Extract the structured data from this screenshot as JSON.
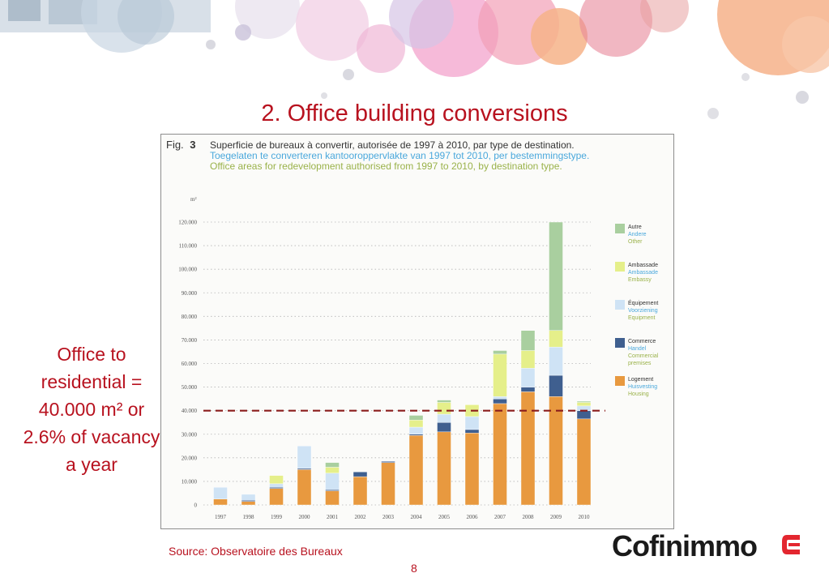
{
  "slide": {
    "title": "2. Office building conversions",
    "note": "Office to residential = 40.000 m² or 2.6% of vacancy a year",
    "source": "Source: Observatoire des Bureaux",
    "page_number": "8",
    "logo_text": "Cofinimmo"
  },
  "chart_data": {
    "type": "bar",
    "stacked": true,
    "fig_label": "Fig.",
    "fig_number": "3",
    "title_fr": "Superficie de bureaux à convertir, autorisée de 1997 à 2010, par type de destination.",
    "title_nl": "Toegelaten te converteren kantooroppervlakte van 1997 tot 2010, per bestemmingstype.",
    "title_en": "Office areas for redevelopment authorised from 1997 to 2010, by destination type.",
    "ylabel": "m²",
    "ylim": [
      0,
      120000
    ],
    "yticks": [
      "0",
      "10.000",
      "20.000",
      "30.000",
      "40.000",
      "50.000",
      "60.000",
      "70.000",
      "80.000",
      "90.000",
      "100.000",
      "110.000",
      "120.000"
    ],
    "grid": true,
    "legend_position": "right",
    "categories": [
      "1997",
      "1998",
      "1999",
      "2000",
      "2001",
      "2002",
      "2003",
      "2004",
      "2005",
      "2006",
      "2007",
      "2008",
      "2009",
      "2010"
    ],
    "series": [
      {
        "name": "Logement",
        "name_nl": "Huisvesting",
        "name_en": "Housing",
        "color": "#e8993f",
        "values": [
          2500,
          1500,
          7000,
          15000,
          6000,
          12000,
          18000,
          29500,
          31000,
          30500,
          43000,
          48000,
          46000,
          36500
        ]
      },
      {
        "name": "Commerce",
        "name_nl": "Handel",
        "name_en": "Commercial premises",
        "color": "#3f5f8f",
        "values": [
          0,
          500,
          500,
          500,
          500,
          2000,
          500,
          500,
          4000,
          1500,
          2000,
          2000,
          9000,
          3500
        ]
      },
      {
        "name": "Équipement",
        "name_nl": "Voorziening",
        "name_en": "Equipment",
        "color": "#cfe3f5",
        "values": [
          5000,
          2500,
          1500,
          9500,
          7000,
          0,
          0,
          3000,
          3500,
          5500,
          1000,
          8000,
          12000,
          2000
        ]
      },
      {
        "name": "Ambassade",
        "name_nl": "Ambassade",
        "name_en": "Embassy",
        "color": "#e5ef8a",
        "values": [
          0,
          0,
          3500,
          0,
          2500,
          0,
          0,
          3000,
          5000,
          5000,
          18000,
          7500,
          7000,
          1500
        ]
      },
      {
        "name": "Autre",
        "name_nl": "Andere",
        "name_en": "Other",
        "color": "#a9cf9f",
        "values": [
          0,
          0,
          0,
          0,
          2000,
          0,
          0,
          2000,
          1000,
          0,
          1500,
          8500,
          46000,
          500
        ]
      }
    ],
    "reference_line": {
      "value": 40000,
      "color": "#8b1c1c",
      "style": "dashed"
    }
  }
}
